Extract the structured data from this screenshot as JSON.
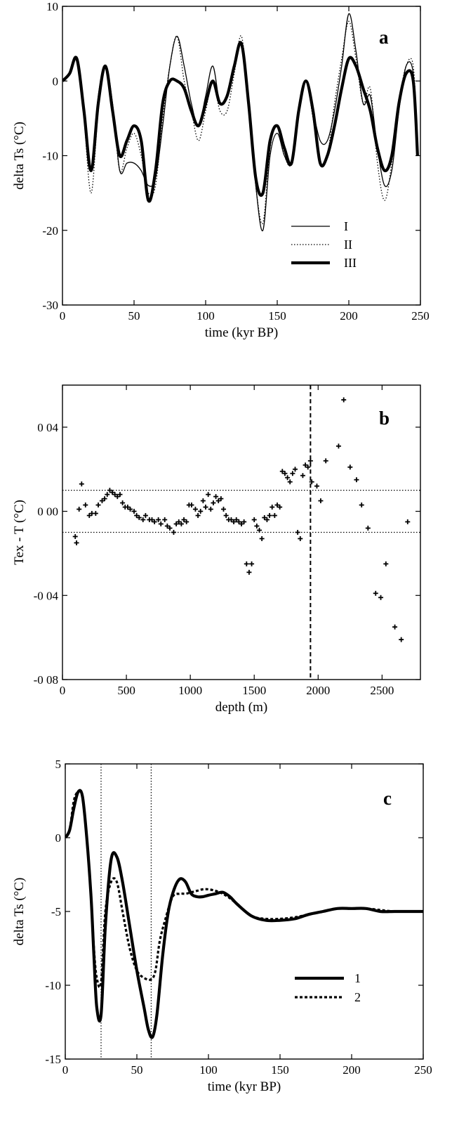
{
  "chart_data": [
    {
      "type": "line",
      "panel_label": "a",
      "xlabel": "time (kyr BP)",
      "ylabel": "delta Ts (°C)",
      "xlim": [
        0,
        250
      ],
      "ylim": [
        -30,
        10
      ],
      "xticks": [
        0,
        50,
        100,
        150,
        200,
        250
      ],
      "yticks": [
        -30,
        -20,
        -10,
        0,
        10
      ],
      "xtick_labels": [
        "0",
        "50",
        "100",
        "150",
        "200",
        "250"
      ],
      "ytick_labels": [
        "-30",
        "-20",
        "-10",
        "0",
        "10"
      ],
      "legend_position": "lower-right",
      "series": [
        {
          "name": "I",
          "style": "thin-solid",
          "x": [
            0,
            5,
            10,
            15,
            20,
            25,
            30,
            35,
            40,
            45,
            50,
            55,
            60,
            65,
            70,
            75,
            80,
            85,
            90,
            95,
            100,
            105,
            110,
            115,
            120,
            125,
            130,
            135,
            140,
            145,
            150,
            155,
            160,
            165,
            170,
            175,
            180,
            185,
            190,
            195,
            200,
            205,
            210,
            215,
            220,
            225,
            230,
            235,
            240,
            245,
            248
          ],
          "y": [
            0,
            1,
            3,
            -4,
            -12,
            -2,
            2,
            -3,
            -12,
            -11,
            -11,
            -12,
            -14,
            -13,
            -6,
            2,
            6,
            2,
            -3,
            -6,
            -2,
            2,
            -3,
            -2,
            2,
            5,
            -3,
            -14,
            -20,
            -10,
            -7,
            -10,
            -11,
            -4,
            0,
            -4,
            -8,
            -8,
            -4,
            2,
            9,
            4,
            -3,
            -2,
            -9,
            -14,
            -12,
            -4,
            2,
            1,
            -10
          ]
        },
        {
          "name": "II",
          "style": "dotted",
          "x": [
            0,
            5,
            10,
            15,
            20,
            25,
            30,
            35,
            40,
            45,
            50,
            55,
            60,
            65,
            70,
            75,
            80,
            85,
            90,
            95,
            100,
            105,
            110,
            115,
            120,
            125,
            130,
            135,
            140,
            145,
            150,
            155,
            160,
            165,
            170,
            175,
            180,
            185,
            190,
            195,
            200,
            205,
            210,
            215,
            220,
            225,
            230,
            235,
            240,
            245,
            248
          ],
          "y": [
            0,
            1,
            3,
            -5,
            -15,
            -4,
            2,
            -3,
            -12,
            -9,
            -7,
            -10,
            -15,
            -14,
            -5,
            2,
            6,
            0,
            -4,
            -8,
            -4,
            0,
            -4,
            -4,
            1,
            6,
            -3,
            -14,
            -19,
            -9,
            -6,
            -10,
            -11,
            -4,
            0,
            -5,
            -11,
            -10,
            -3,
            3,
            8,
            3,
            -3,
            -1,
            -11,
            -16,
            -11,
            -3,
            2,
            2,
            -9
          ]
        },
        {
          "name": "III",
          "style": "thick-solid",
          "x": [
            0,
            5,
            10,
            15,
            20,
            25,
            30,
            35,
            40,
            45,
            50,
            55,
            60,
            65,
            70,
            75,
            80,
            85,
            90,
            95,
            100,
            105,
            110,
            115,
            120,
            125,
            130,
            135,
            140,
            145,
            150,
            155,
            160,
            165,
            170,
            175,
            180,
            185,
            190,
            195,
            200,
            205,
            210,
            215,
            220,
            225,
            230,
            235,
            240,
            245,
            248
          ],
          "y": [
            0,
            1,
            3,
            -4,
            -12,
            -3,
            2,
            -4,
            -10,
            -8,
            -6,
            -8,
            -16,
            -12,
            -3,
            0,
            0,
            -1,
            -4,
            -6,
            -3,
            0,
            -3,
            -2,
            2,
            5,
            -3,
            -13,
            -15,
            -8,
            -6,
            -9,
            -11,
            -4,
            0,
            -4,
            -11,
            -10,
            -6,
            -1,
            3,
            2,
            -1,
            -4,
            -9,
            -12,
            -10,
            -3,
            1,
            0,
            -10
          ]
        }
      ]
    },
    {
      "type": "scatter",
      "panel_label": "b",
      "xlabel": "depth (m)",
      "ylabel": "Tex - T (°C)",
      "xlim": [
        0,
        2800
      ],
      "ylim": [
        -0.08,
        0.06
      ],
      "xticks": [
        0,
        500,
        1000,
        1500,
        2000,
        2500
      ],
      "yticks": [
        -0.08,
        -0.04,
        0.0,
        0.04
      ],
      "xtick_labels": [
        "0",
        "500",
        "1000",
        "1500",
        "2000",
        "2500"
      ],
      "ytick_labels": [
        "-0 08",
        "-0 04",
        "0 00",
        "0 04"
      ],
      "reference_lines": {
        "horizontal_dotted": [
          0.01,
          -0.01
        ],
        "vertical_dashed": [
          1940
        ]
      },
      "x": [
        100,
        110,
        130,
        150,
        180,
        210,
        230,
        260,
        280,
        310,
        330,
        350,
        370,
        390,
        410,
        430,
        450,
        470,
        490,
        510,
        530,
        560,
        580,
        600,
        630,
        650,
        680,
        700,
        720,
        750,
        770,
        800,
        820,
        840,
        870,
        890,
        910,
        930,
        950,
        970,
        990,
        1010,
        1040,
        1060,
        1080,
        1100,
        1120,
        1140,
        1160,
        1180,
        1200,
        1220,
        1240,
        1260,
        1280,
        1300,
        1320,
        1340,
        1360,
        1380,
        1400,
        1420,
        1440,
        1460,
        1480,
        1500,
        1520,
        1540,
        1560,
        1580,
        1600,
        1620,
        1640,
        1660,
        1680,
        1700,
        1720,
        1740,
        1760,
        1780,
        1800,
        1820,
        1840,
        1860,
        1880,
        1900,
        1920,
        1940,
        1950,
        1990,
        2020,
        2060,
        2160,
        2200,
        2250,
        2300,
        2340,
        2390,
        2450,
        2490,
        2530,
        2600,
        2650,
        2700
      ],
      "y": [
        -0.012,
        -0.015,
        0.001,
        0.013,
        0.003,
        -0.002,
        -0.001,
        -0.001,
        0.003,
        0.005,
        0.006,
        0.008,
        0.01,
        0.009,
        0.008,
        0.007,
        0.008,
        0.004,
        0.002,
        0.002,
        0.001,
        0.0,
        -0.002,
        -0.003,
        -0.004,
        -0.002,
        -0.004,
        -0.004,
        -0.005,
        -0.004,
        -0.006,
        -0.004,
        -0.007,
        -0.008,
        -0.01,
        -0.006,
        -0.005,
        -0.006,
        -0.004,
        -0.005,
        0.003,
        0.003,
        0.001,
        -0.002,
        0.0,
        0.005,
        0.002,
        0.008,
        0.001,
        0.004,
        0.007,
        0.005,
        0.006,
        0.001,
        -0.002,
        -0.004,
        -0.004,
        -0.005,
        -0.004,
        -0.005,
        -0.006,
        -0.005,
        -0.025,
        -0.029,
        -0.025,
        -0.004,
        -0.007,
        -0.009,
        -0.013,
        -0.003,
        -0.004,
        -0.002,
        0.002,
        -0.002,
        0.003,
        0.002,
        0.019,
        0.018,
        0.016,
        0.014,
        0.018,
        0.02,
        -0.01,
        -0.013,
        0.017,
        0.022,
        0.021,
        0.024,
        0.014,
        0.012,
        0.005,
        0.024,
        0.031,
        0.053,
        0.021,
        0.015,
        0.003,
        -0.008,
        -0.039,
        -0.041,
        -0.025,
        -0.055,
        -0.061,
        -0.005
      ]
    },
    {
      "type": "line",
      "panel_label": "c",
      "xlabel": "time (kyr BP)",
      "ylabel": "delta Ts (°C)",
      "xlim": [
        0,
        250
      ],
      "ylim": [
        -15,
        5
      ],
      "xticks": [
        0,
        50,
        100,
        150,
        200,
        250
      ],
      "yticks": [
        -15,
        -10,
        -5,
        0,
        5
      ],
      "xtick_labels": [
        "0",
        "50",
        "100",
        "150",
        "200",
        "250"
      ],
      "ytick_labels": [
        "-15",
        "-10",
        "-5",
        "0",
        "5"
      ],
      "reference_lines": {
        "vertical_dotted": [
          25,
          60
        ]
      },
      "legend_position": "lower-right",
      "series": [
        {
          "name": "1",
          "style": "thick-solid",
          "x": [
            0,
            3,
            6,
            9,
            12,
            15,
            18,
            20,
            22,
            25,
            28,
            32,
            36,
            40,
            45,
            50,
            55,
            58,
            61,
            64,
            68,
            72,
            76,
            80,
            84,
            88,
            92,
            96,
            100,
            105,
            110,
            115,
            120,
            130,
            140,
            150,
            160,
            170,
            180,
            190,
            200,
            210,
            220,
            230,
            240,
            250
          ],
          "y": [
            0,
            0.5,
            2,
            3.1,
            2.8,
            0,
            -4,
            -8,
            -11.5,
            -12,
            -6,
            -1.5,
            -1.3,
            -3,
            -6,
            -9,
            -11.5,
            -13,
            -13.5,
            -12,
            -8,
            -5,
            -3.5,
            -2.8,
            -3,
            -3.8,
            -4,
            -4,
            -3.9,
            -3.8,
            -3.7,
            -4,
            -4.5,
            -5.3,
            -5.6,
            -5.6,
            -5.5,
            -5.2,
            -5,
            -4.8,
            -4.8,
            -4.8,
            -5,
            -5,
            -5,
            -5
          ]
        },
        {
          "name": "2",
          "style": "dotted-thick",
          "x": [
            0,
            3,
            6,
            9,
            12,
            15,
            18,
            20,
            22,
            25,
            28,
            32,
            36,
            40,
            45,
            50,
            55,
            60,
            63,
            66,
            70,
            75,
            80,
            84,
            88,
            92,
            96,
            100,
            105,
            110,
            115,
            120,
            130,
            140,
            150,
            160,
            170,
            180,
            190,
            200,
            210,
            220,
            230,
            240,
            250
          ],
          "y": [
            0,
            0.5,
            2.5,
            3.1,
            2.8,
            0,
            -4,
            -7.5,
            -9.5,
            -9.8,
            -5,
            -3,
            -3,
            -5,
            -7.5,
            -9,
            -9.5,
            -9.6,
            -9,
            -7,
            -5.5,
            -4,
            -3.8,
            -3.8,
            -3.7,
            -3.6,
            -3.5,
            -3.5,
            -3.6,
            -3.8,
            -4.1,
            -4.5,
            -5.3,
            -5.5,
            -5.5,
            -5.4,
            -5.2,
            -5,
            -4.8,
            -4.8,
            -4.8,
            -4.9,
            -5,
            -5,
            -5
          ]
        }
      ]
    }
  ]
}
